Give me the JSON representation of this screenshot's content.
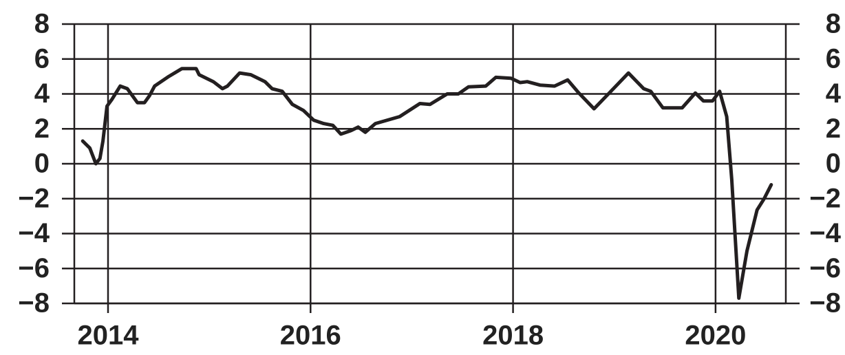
{
  "chart_data": {
    "type": "line",
    "color": "#231f20",
    "x": [
      2013.75,
      2013.82,
      2013.88,
      2013.92,
      2013.95,
      2013.99,
      2014.04,
      2014.12,
      2014.19,
      2014.29,
      2014.36,
      2014.41,
      2014.46,
      2014.6,
      2014.73,
      2014.87,
      2014.9,
      2015.04,
      2015.13,
      2015.18,
      2015.3,
      2015.41,
      2015.55,
      2015.62,
      2015.72,
      2015.82,
      2015.93,
      2016.03,
      2016.13,
      2016.22,
      2016.3,
      2016.4,
      2016.47,
      2016.54,
      2016.64,
      2016.88,
      2017.08,
      2017.18,
      2017.35,
      2017.46,
      2017.56,
      2017.73,
      2017.83,
      2017.98,
      2018.07,
      2018.14,
      2018.27,
      2018.41,
      2018.54,
      2018.65,
      2018.8,
      2018.95,
      2019.14,
      2019.29,
      2019.36,
      2019.48,
      2019.67,
      2019.8,
      2019.88,
      2019.97,
      2020.04,
      2020.11,
      2020.16,
      2020.23,
      2020.31,
      2020.41,
      2020.48,
      2020.55
    ],
    "values": [
      1.3,
      0.9,
      0,
      0.3,
      1.3,
      3.3,
      3.7,
      4.45,
      4.3,
      3.5,
      3.5,
      3.9,
      4.45,
      5.0,
      5.45,
      5.45,
      5.1,
      4.7,
      4.3,
      4.45,
      5.2,
      5.1,
      4.7,
      4.3,
      4.15,
      3.4,
      3.05,
      2.5,
      2.3,
      2.2,
      1.7,
      1.9,
      2.1,
      1.8,
      2.3,
      2.7,
      3.45,
      3.4,
      4.0,
      4.0,
      4.4,
      4.45,
      4.95,
      4.9,
      4.65,
      4.7,
      4.5,
      4.45,
      4.8,
      4.05,
      3.15,
      4.05,
      5.2,
      4.3,
      4.15,
      3.2,
      3.2,
      4.05,
      3.6,
      3.6,
      4.15,
      2.7,
      -0.9,
      -7.7,
      -5.0,
      -2.65,
      -2.0,
      -1.2
    ],
    "xlim": [
      2013.667,
      2020.694
    ],
    "xticks": [
      2014,
      2016,
      2018,
      2020
    ],
    "ylim": [
      -8,
      8
    ],
    "yticks": [
      {
        "value": -8,
        "label": "−8"
      },
      {
        "value": -6,
        "label": "−6"
      },
      {
        "value": -4,
        "label": "−4"
      },
      {
        "value": -2,
        "label": "−2"
      },
      0,
      2,
      4,
      6,
      8
    ],
    "grid": true
  }
}
